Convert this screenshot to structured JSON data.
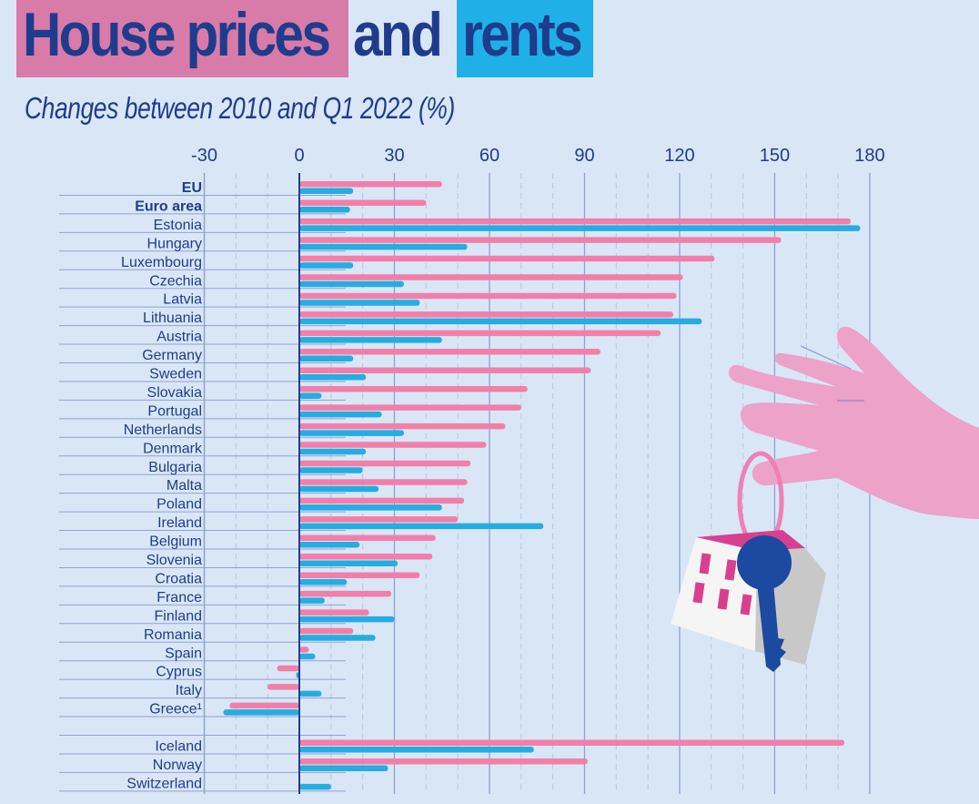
{
  "header": {
    "title_part1": "House prices",
    "title_part2": "and",
    "title_part3": "rents",
    "subtitle": "Changes between 2010 and Q1 2022 (%)"
  },
  "colors": {
    "house_prices": "#f27fa9",
    "rents": "#27ace0",
    "title_pink_box": "#d87ba9",
    "title_blue_box": "#1eb0e6",
    "text": "#1f3c8c",
    "background": "#d9e6f6"
  },
  "illustration": {
    "description": "Pink hand holding a key ring with a blue key and a small white house with pink windows",
    "icons": [
      "hand-icon",
      "key-icon",
      "house-icon"
    ]
  },
  "chart_data": {
    "type": "bar",
    "orientation": "horizontal",
    "title": "House prices and rents",
    "subtitle": "Changes between 2010 and Q1 2022 (%)",
    "xlabel": "",
    "ylabel": "",
    "xlim": [
      -30,
      180
    ],
    "xticks": [
      -30,
      0,
      30,
      60,
      90,
      120,
      150,
      180
    ],
    "xtick_labels": [
      "-30",
      "0",
      "30",
      "60",
      "90",
      "120",
      "150",
      "180"
    ],
    "grid": true,
    "legend": "title-color-coded (pink = house prices, blue = rents)",
    "categories": [
      "EU",
      "Euro area",
      "Estonia",
      "Hungary",
      "Luxembourg",
      "Czechia",
      "Latvia",
      "Lithuania",
      "Austria",
      "Germany",
      "Sweden",
      "Slovakia",
      "Portugal",
      "Netherlands",
      "Denmark",
      "Bulgaria",
      "Malta",
      "Poland",
      "Ireland",
      "Belgium",
      "Slovenia",
      "Croatia",
      "France",
      "Finland",
      "Romania",
      "Spain",
      "Cyprus",
      "Italy",
      "Greece¹",
      "",
      "Iceland",
      "Norway",
      "Switzerland"
    ],
    "bold_categories": [
      "EU",
      "Euro area"
    ],
    "series": [
      {
        "name": "House prices",
        "color": "#f27fa9",
        "values": [
          45,
          40,
          174,
          152,
          131,
          121,
          119,
          118,
          114,
          95,
          92,
          72,
          70,
          65,
          59,
          54,
          53,
          52,
          50,
          43,
          42,
          38,
          29,
          22,
          17,
          3,
          -7,
          -10,
          -22,
          null,
          172,
          91,
          null
        ]
      },
      {
        "name": "Rents",
        "color": "#27ace0",
        "values": [
          17,
          16,
          177,
          53,
          17,
          33,
          38,
          127,
          45,
          17,
          21,
          7,
          26,
          33,
          21,
          20,
          25,
          45,
          77,
          19,
          31,
          15,
          8,
          30,
          24,
          5,
          -1,
          7,
          -24,
          null,
          74,
          28,
          10
        ]
      }
    ]
  }
}
